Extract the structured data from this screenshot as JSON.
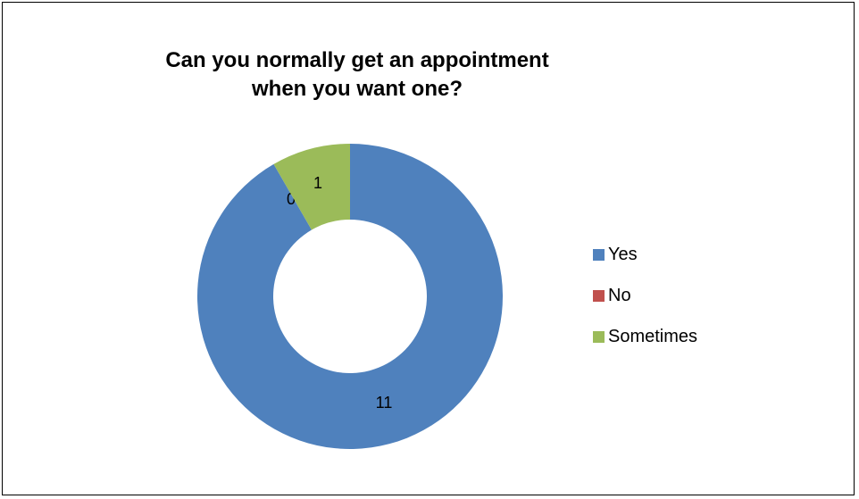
{
  "chart_data": {
    "type": "pie",
    "variant": "doughnut",
    "title_lines": [
      "Can you normally get an appointment",
      "when you want one?"
    ],
    "categories": [
      "Yes",
      "No",
      "Sometimes"
    ],
    "values": [
      11,
      0,
      1
    ],
    "colors": [
      "#4F81BD",
      "#C0504D",
      "#9BBB59"
    ],
    "data_labels": [
      "11",
      "0",
      "1"
    ],
    "legend": {
      "position": "right",
      "entries": [
        "Yes",
        "No",
        "Sometimes"
      ]
    }
  }
}
